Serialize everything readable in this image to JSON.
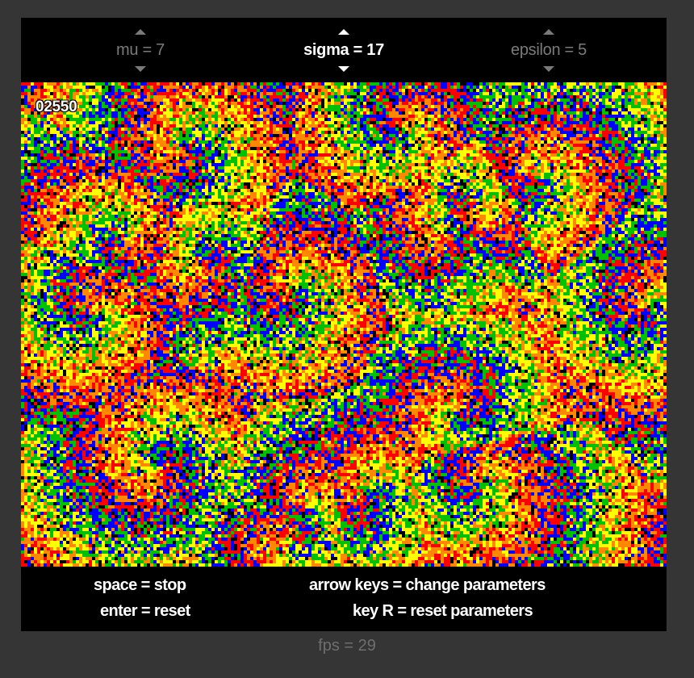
{
  "params": [
    {
      "name": "mu",
      "label": "mu = 7",
      "value": 7,
      "active": false
    },
    {
      "name": "sigma",
      "label": "sigma = 17",
      "value": 17,
      "active": true
    },
    {
      "name": "epsilon",
      "label": "epsilon = 5",
      "value": 5,
      "active": false
    }
  ],
  "counter": "02550",
  "help": {
    "space": "space = stop",
    "enter": "enter = reset",
    "arrows": "arrow keys = change parameters",
    "key_r": "key R = reset parameters"
  },
  "fps": "fps = 29",
  "palette": [
    "#0000ff",
    "#00c000",
    "#ffff00",
    "#ff8800",
    "#ff0000"
  ]
}
